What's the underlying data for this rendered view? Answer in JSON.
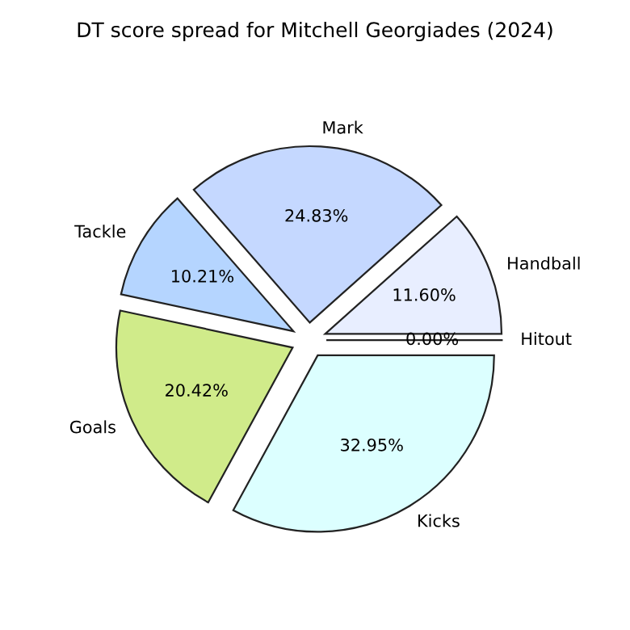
{
  "chart_data": {
    "type": "pie",
    "title": "DT score spread for Mitchell Georgiades (2024)",
    "categories": [
      "Hitout",
      "Handball",
      "Mark",
      "Tackle",
      "Goals",
      "Kicks"
    ],
    "values": [
      0.0,
      11.6,
      24.83,
      10.21,
      20.42,
      32.95
    ],
    "value_labels": [
      "0.00%",
      "11.60%",
      "24.83%",
      "10.21%",
      "20.42%",
      "32.95%"
    ],
    "colors": [
      "#c8e6c8",
      "#e8eeff",
      "#c5d8ff",
      "#b5d5ff",
      "#d0eb8a",
      "#dcffff"
    ]
  }
}
